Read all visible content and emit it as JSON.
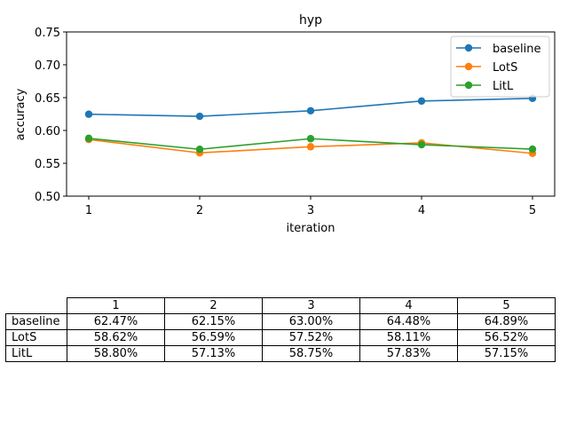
{
  "chart_data": {
    "type": "line",
    "title": "hyp",
    "xlabel": "iteration",
    "ylabel": "accuracy",
    "x": [
      1,
      2,
      3,
      4,
      5
    ],
    "xticks": [
      "1",
      "2",
      "3",
      "4",
      "5"
    ],
    "xlim": [
      0.8,
      5.2
    ],
    "ylim": [
      0.5,
      0.75
    ],
    "yticks": [
      "0.50",
      "0.55",
      "0.60",
      "0.65",
      "0.70",
      "0.75"
    ],
    "ytick_values": [
      0.5,
      0.55,
      0.6,
      0.65,
      0.7,
      0.75
    ],
    "grid": false,
    "legend_position": "top-right",
    "series": [
      {
        "name": "baseline",
        "color": "#1f77b4",
        "values": [
          0.6247,
          0.6215,
          0.63,
          0.6448,
          0.6489
        ]
      },
      {
        "name": "LotS",
        "color": "#ff7f0e",
        "values": [
          0.5862,
          0.5659,
          0.5752,
          0.5811,
          0.5652
        ]
      },
      {
        "name": "LitL",
        "color": "#2ca02c",
        "values": [
          0.588,
          0.5713,
          0.5875,
          0.5783,
          0.5715
        ]
      }
    ]
  },
  "table": {
    "columns": [
      "1",
      "2",
      "3",
      "4",
      "5"
    ],
    "rows": [
      {
        "label": "baseline",
        "cells": [
          "62.47%",
          "62.15%",
          "63.00%",
          "64.48%",
          "64.89%"
        ]
      },
      {
        "label": "LotS",
        "cells": [
          "58.62%",
          "56.59%",
          "57.52%",
          "58.11%",
          "56.52%"
        ]
      },
      {
        "label": "LitL",
        "cells": [
          "58.80%",
          "57.13%",
          "58.75%",
          "57.83%",
          "57.15%"
        ]
      }
    ]
  }
}
